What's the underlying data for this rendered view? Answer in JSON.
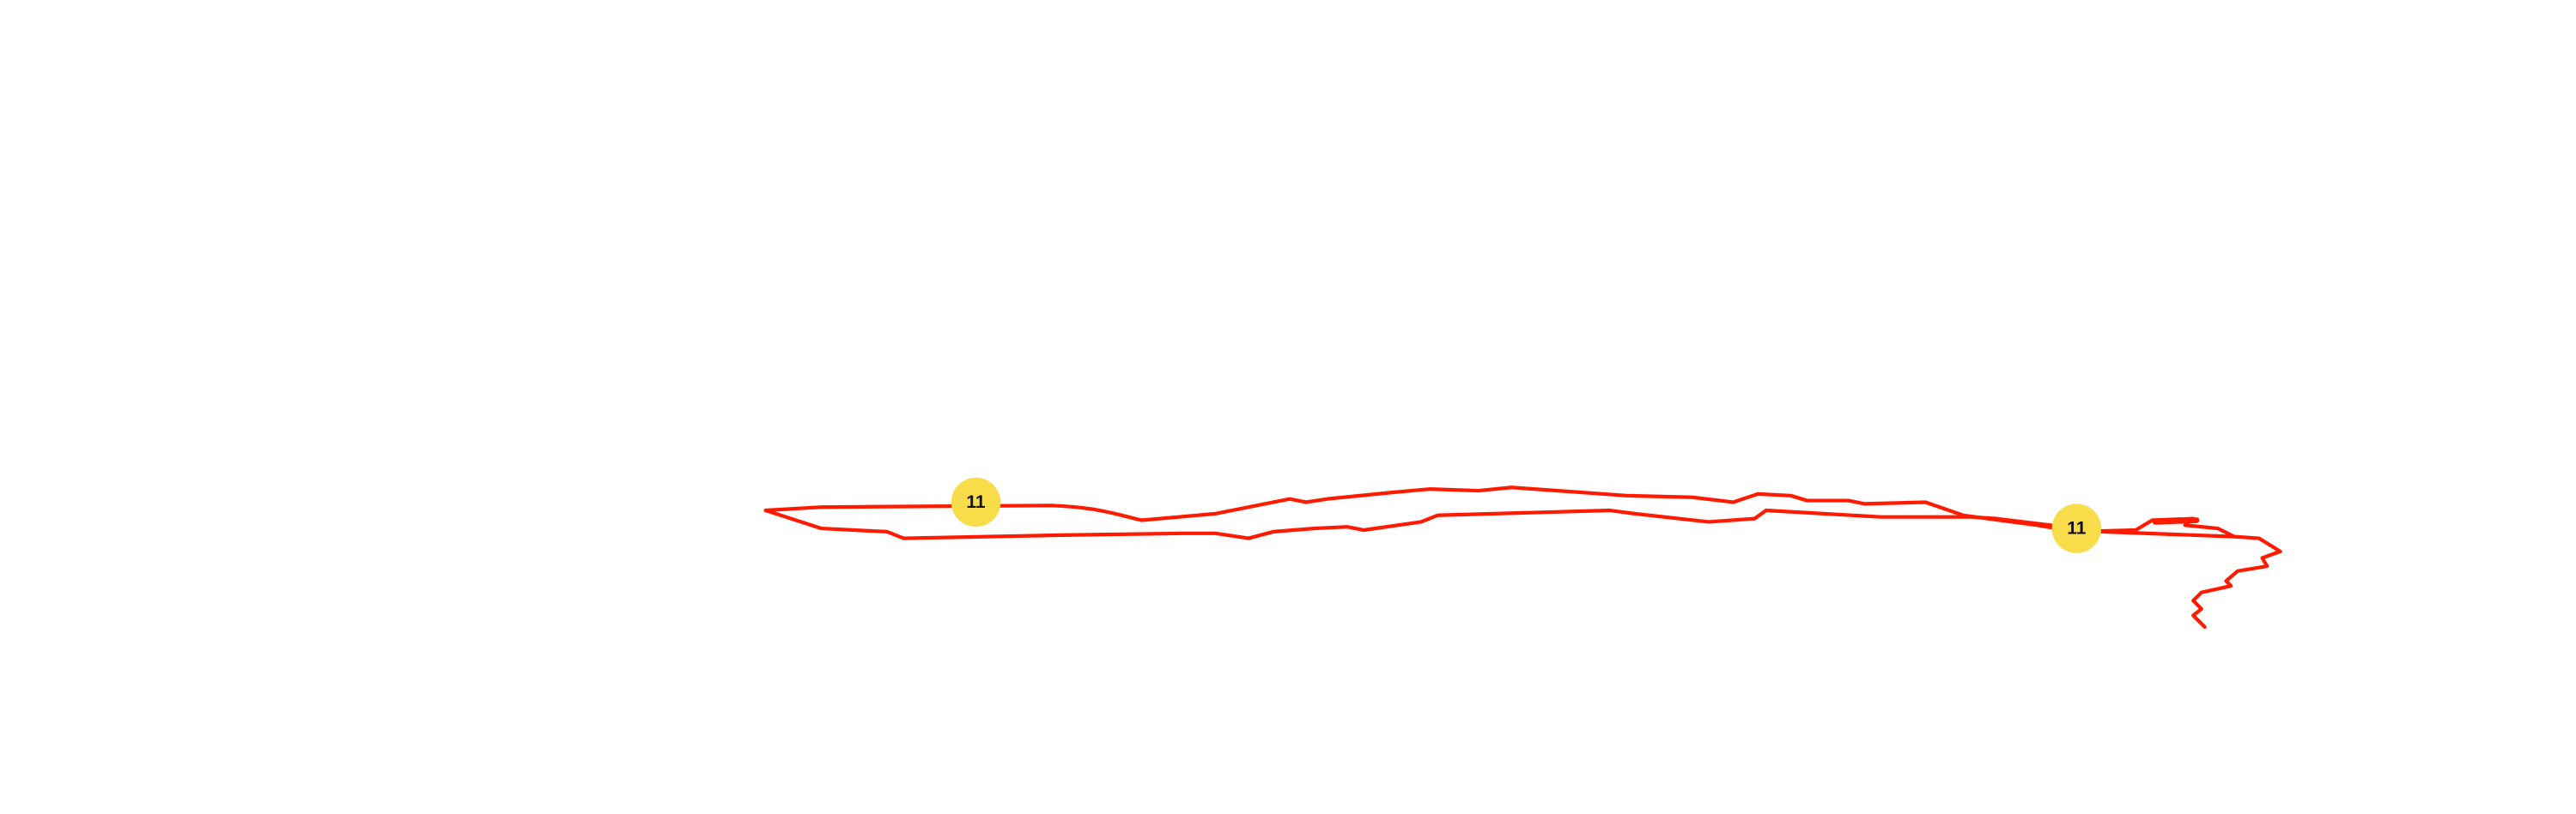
{
  "markers": [
    {
      "label": "11"
    },
    {
      "label": "11"
    }
  ]
}
